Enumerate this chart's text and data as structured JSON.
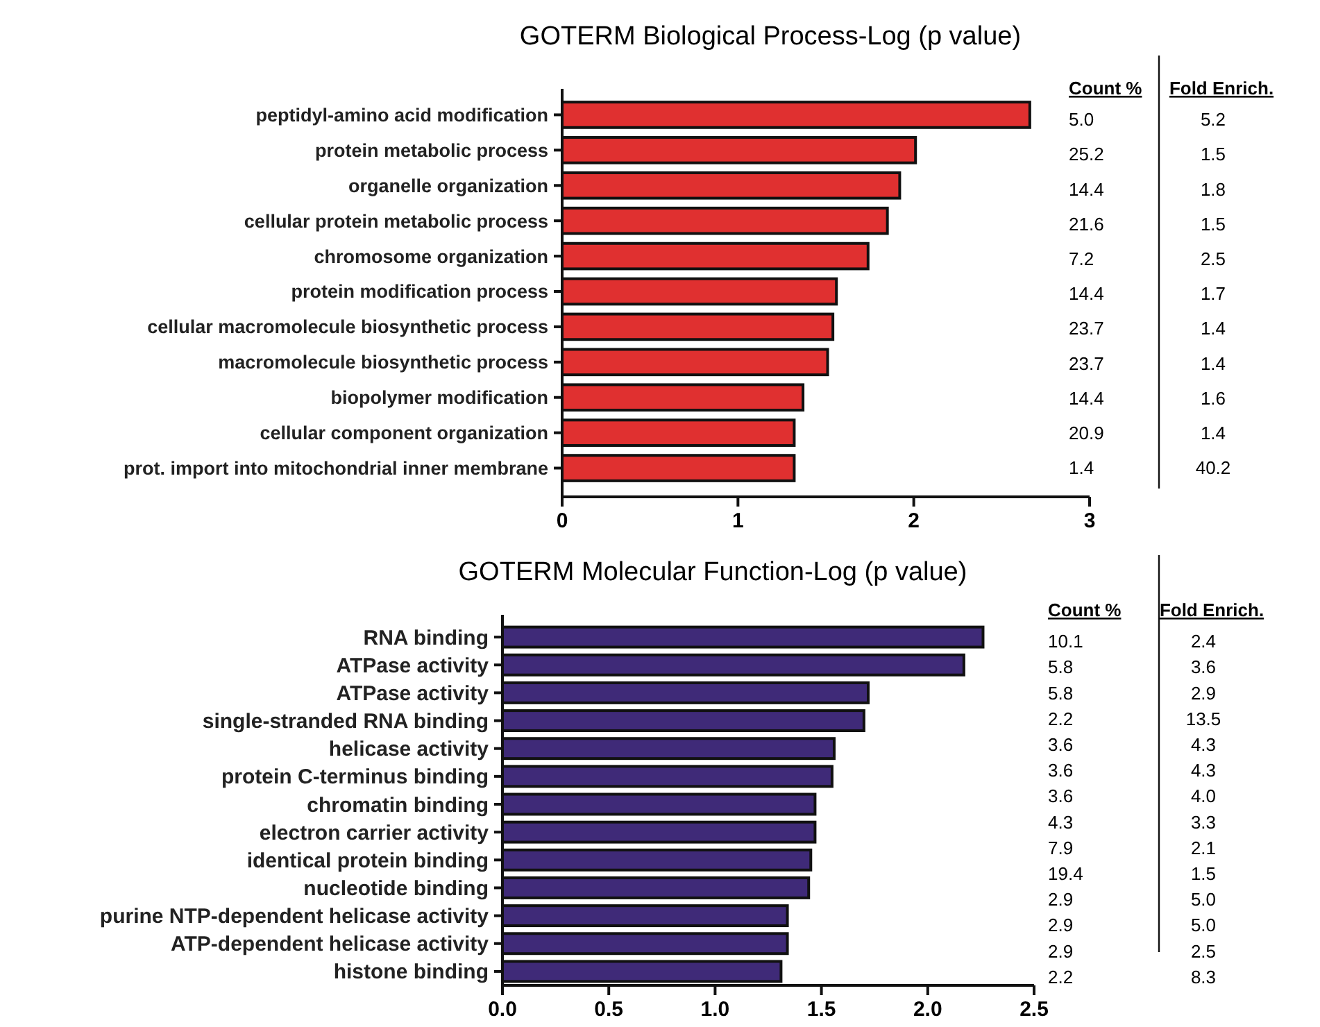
{
  "chart_data": [
    {
      "type": "bar",
      "orientation": "horizontal",
      "title": "GOTERM Biological Process-Log (p value)",
      "categories": [
        "peptidyl-amino acid modification",
        "protein metabolic process",
        "organelle organization",
        "cellular protein metabolic process",
        "chromosome organization",
        "protein modification process",
        "cellular macromolecule biosynthetic process",
        "macromolecule biosynthetic process",
        "biopolymer modification",
        "cellular component organization",
        "prot. import into mitochondrial inner membrane"
      ],
      "values": [
        2.66,
        2.01,
        1.92,
        1.85,
        1.74,
        1.56,
        1.54,
        1.51,
        1.37,
        1.32,
        1.32
      ],
      "color": "#e03030",
      "xlim": [
        0,
        3
      ],
      "xticks": [
        0,
        1,
        2,
        3
      ],
      "grid": false,
      "annotations": [
        "Count %",
        "Fold Enrich.",
        "5.0",
        "5.2",
        "25.2",
        "1.5",
        "14.4",
        "1.8",
        "21.6",
        "1.5",
        "7.2",
        "2.5",
        "14.4",
        "1.7",
        "23.7",
        "1.4",
        "23.7",
        "1.4",
        "14.4",
        "1.6",
        "20.9",
        "1.4",
        "1.4",
        "40.2"
      ]
    },
    {
      "type": "bar",
      "orientation": "horizontal",
      "title": "GOTERM Molecular Function-Log (p value)",
      "categories": [
        "RNA binding",
        "ATPase activity",
        "ATPase activity",
        "single-stranded RNA binding",
        "helicase activity",
        "protein C-terminus binding",
        "chromatin binding",
        "electron carrier activity",
        "identical protein binding",
        "nucleotide binding",
        "purine NTP-dependent helicase activity",
        "ATP-dependent helicase activity",
        "histone binding"
      ],
      "values": [
        2.26,
        2.17,
        1.72,
        1.7,
        1.56,
        1.55,
        1.47,
        1.47,
        1.45,
        1.44,
        1.34,
        1.34,
        1.31
      ],
      "color": "#3f2a78",
      "xlim": [
        0,
        2.5
      ],
      "xticks": [
        {
          "value": 0,
          "label": "0.0"
        },
        {
          "value": 0.5,
          "label": "0.5"
        },
        {
          "value": 1,
          "label": "1.0"
        },
        {
          "value": 1.5,
          "label": "1.5"
        },
        {
          "value": 2,
          "label": "2.0"
        },
        {
          "value": 2.5,
          "label": "2.5"
        }
      ],
      "grid": false,
      "annotations": [
        "Count %",
        "Fold Enrich.",
        "10.1",
        "2.4",
        "5.8",
        "3.6",
        "5.8",
        "2.9",
        "2.2",
        "13.5",
        "3.6",
        "4.3",
        "3.6",
        "4.3",
        "3.6",
        "4.0",
        "4.3",
        "3.3",
        "7.9",
        "2.1",
        "19.4",
        "1.5",
        "2.9",
        "5.0",
        "2.9",
        "5.0",
        "2.9",
        "2.5",
        "2.2",
        "8.3"
      ]
    }
  ]
}
